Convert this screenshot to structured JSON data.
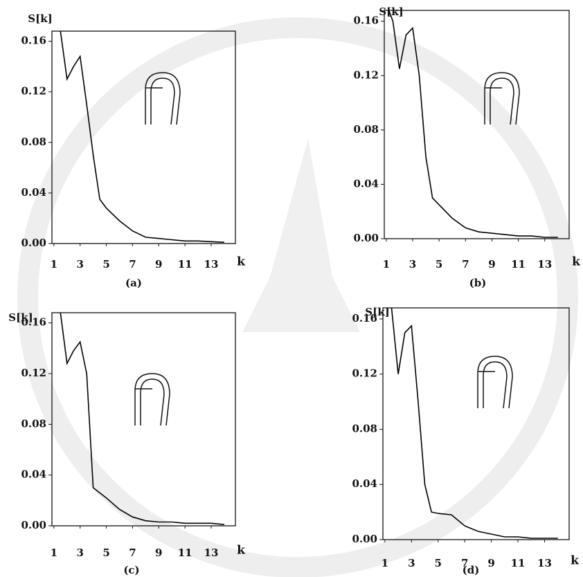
{
  "chart_data": [
    {
      "type": "line",
      "caption": "(a)",
      "ylabel": "S[k]",
      "xlabel": "k",
      "color": "#000000",
      "x": [
        1.5,
        2,
        2.5,
        3,
        3.5,
        4,
        4.5,
        5,
        6,
        7,
        8,
        9,
        10,
        11,
        12,
        13,
        14
      ],
      "values": [
        0.168,
        0.13,
        0.14,
        0.148,
        0.11,
        0.07,
        0.035,
        0.028,
        0.018,
        0.01,
        0.005,
        0.004,
        0.003,
        0.002,
        0.002,
        0.0015,
        0.001
      ],
      "xlim": [
        0.85,
        14.85
      ],
      "ylim": [
        0,
        0.168
      ],
      "xticks": [
        1,
        3,
        5,
        7,
        9,
        11,
        13
      ],
      "yticks": [
        {
          "value": 0,
          "label": "0.00"
        },
        0.04,
        0.08,
        0.12,
        0.16
      ]
    },
    {
      "type": "line",
      "caption": "(b)",
      "ylabel": "S[k]",
      "xlabel": "k",
      "color": "#000000",
      "x": [
        1.2,
        1.5,
        2,
        2.5,
        3,
        3.5,
        4,
        4.5,
        5,
        6,
        7,
        8,
        9,
        10,
        11,
        12,
        13,
        14
      ],
      "values": [
        0.168,
        0.16,
        0.125,
        0.15,
        0.155,
        0.12,
        0.06,
        0.03,
        0.025,
        0.015,
        0.008,
        0.005,
        0.004,
        0.003,
        0.002,
        0.002,
        0.001,
        0.001
      ],
      "xlim": [
        0.85,
        14.85
      ],
      "ylim": [
        0,
        0.168
      ],
      "xticks": [
        1,
        3,
        5,
        7,
        9,
        11,
        13
      ],
      "yticks": [
        {
          "value": 0,
          "label": "0.00"
        },
        0.04,
        0.08,
        0.12,
        0.16
      ]
    },
    {
      "type": "line",
      "caption": "(c)",
      "ylabel": "S[k]",
      "xlabel": "k",
      "color": "#000000",
      "x": [
        1.5,
        2,
        2.5,
        3,
        3.5,
        4,
        5,
        6,
        7,
        8,
        9,
        10,
        11,
        12,
        13,
        14
      ],
      "values": [
        0.168,
        0.128,
        0.138,
        0.145,
        0.12,
        0.03,
        0.022,
        0.013,
        0.007,
        0.004,
        0.003,
        0.003,
        0.002,
        0.002,
        0.002,
        0.001
      ],
      "xlim": [
        0.85,
        14.85
      ],
      "ylim": [
        0,
        0.168
      ],
      "xticks": [
        1,
        3,
        5,
        7,
        9,
        11,
        13
      ],
      "yticks": [
        {
          "value": 0,
          "label": "0.00"
        },
        0.04,
        0.08,
        0.12,
        0.16
      ]
    },
    {
      "type": "line",
      "caption": "(d)",
      "ylabel": "S[k]",
      "xlabel": "k",
      "color": "#000000",
      "x": [
        1.5,
        2,
        2.5,
        3,
        3.5,
        4,
        4.5,
        5,
        6,
        7,
        8,
        9,
        10,
        11,
        12,
        13,
        14
      ],
      "values": [
        0.168,
        0.12,
        0.15,
        0.155,
        0.1,
        0.04,
        0.02,
        0.019,
        0.018,
        0.01,
        0.006,
        0.004,
        0.002,
        0.002,
        0.001,
        0.001,
        0.001
      ],
      "xlim": [
        0.85,
        14.85
      ],
      "ylim": [
        0,
        0.168
      ],
      "xticks": [
        1,
        3,
        5,
        7,
        9,
        11,
        13
      ],
      "yticks": [
        {
          "value": 0,
          "label": "0.00"
        },
        0.04,
        0.08,
        0.12,
        0.16
      ]
    }
  ]
}
